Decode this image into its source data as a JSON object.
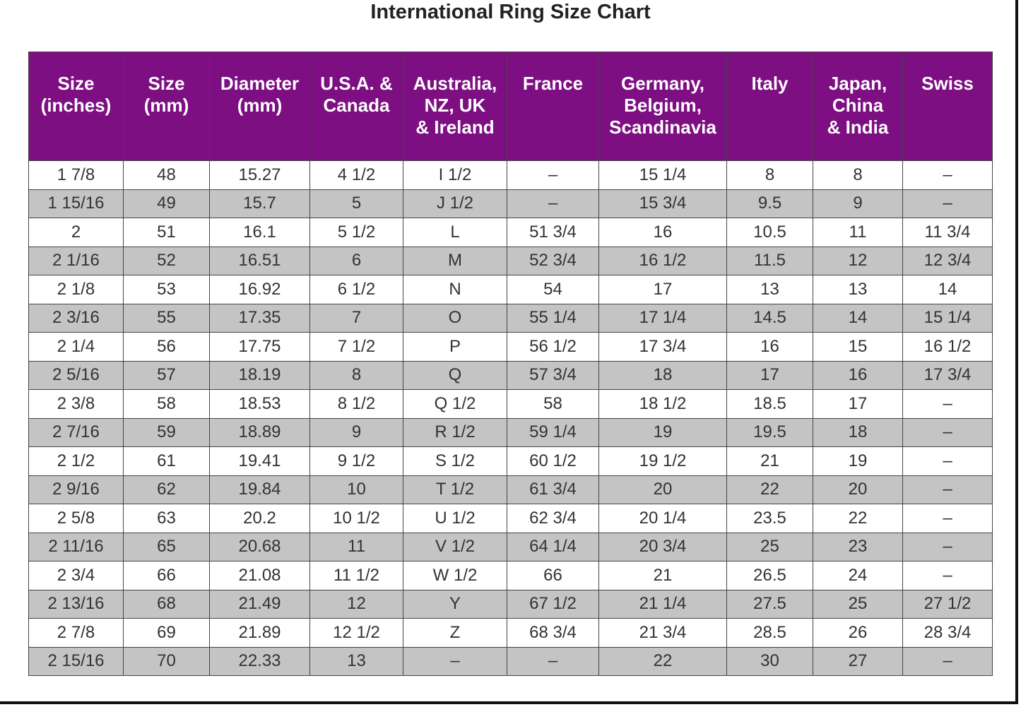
{
  "title": "International Ring Size Chart",
  "table": {
    "header": [
      [
        "Size",
        "(inches)"
      ],
      [
        "Size",
        "(mm)"
      ],
      [
        "Diameter",
        "(mm)"
      ],
      [
        "U.S.A. &",
        "Canada"
      ],
      [
        "Australia,",
        "NZ, UK",
        "& Ireland"
      ],
      [
        "France"
      ],
      [
        "Germany,",
        "Belgium,",
        "Scandinavia"
      ],
      [
        "Italy"
      ],
      [
        "Japan,",
        "China",
        "& India"
      ],
      [
        "Swiss"
      ]
    ],
    "rows": [
      [
        "1 7/8",
        "48",
        "15.27",
        "4 1/2",
        "I 1/2",
        "–",
        "15 1/4",
        "8",
        "8",
        "–"
      ],
      [
        "1 15/16",
        "49",
        "15.7",
        "5",
        "J 1/2",
        "–",
        "15 3/4",
        "9.5",
        "9",
        "–"
      ],
      [
        "2",
        "51",
        "16.1",
        "5 1/2",
        "L",
        "51 3/4",
        "16",
        "10.5",
        "11",
        "11 3/4"
      ],
      [
        "2 1/16",
        "52",
        "16.51",
        "6",
        "M",
        "52 3/4",
        "16 1/2",
        "11.5",
        "12",
        "12 3/4"
      ],
      [
        "2 1/8",
        "53",
        "16.92",
        "6 1/2",
        "N",
        "54",
        "17",
        "13",
        "13",
        "14"
      ],
      [
        "2 3/16",
        "55",
        "17.35",
        "7",
        "O",
        "55 1/4",
        "17 1/4",
        "14.5",
        "14",
        "15 1/4"
      ],
      [
        "2 1/4",
        "56",
        "17.75",
        "7 1/2",
        "P",
        "56 1/2",
        "17 3/4",
        "16",
        "15",
        "16 1/2"
      ],
      [
        "2 5/16",
        "57",
        "18.19",
        "8",
        "Q",
        "57 3/4",
        "18",
        "17",
        "16",
        "17 3/4"
      ],
      [
        "2 3/8",
        "58",
        "18.53",
        "8 1/2",
        "Q 1/2",
        "58",
        "18 1/2",
        "18.5",
        "17",
        "–"
      ],
      [
        "2 7/16",
        "59",
        "18.89",
        "9",
        "R 1/2",
        "59 1/4",
        "19",
        "19.5",
        "18",
        "–"
      ],
      [
        "2 1/2",
        "61",
        "19.41",
        "9 1/2",
        "S 1/2",
        "60 1/2",
        "19 1/2",
        "21",
        "19",
        "–"
      ],
      [
        "2 9/16",
        "62",
        "19.84",
        "10",
        "T 1/2",
        "61 3/4",
        "20",
        "22",
        "20",
        "–"
      ],
      [
        "2 5/8",
        "63",
        "20.2",
        "10 1/2",
        "U 1/2",
        "62 3/4",
        "20 1/4",
        "23.5",
        "22",
        "–"
      ],
      [
        "2 11/16",
        "65",
        "20.68",
        "11",
        "V 1/2",
        "64 1/4",
        "20 3/4",
        "25",
        "23",
        "–"
      ],
      [
        "2 3/4",
        "66",
        "21.08",
        "11 1/2",
        "W 1/2",
        "66",
        "21",
        "26.5",
        "24",
        "–"
      ],
      [
        "2 13/16",
        "68",
        "21.49",
        "12",
        "Y",
        "67 1/2",
        "21 1/4",
        "27.5",
        "25",
        "27 1/2"
      ],
      [
        "2 7/8",
        "69",
        "21.89",
        "12 1/2",
        "Z",
        "68 3/4",
        "21 3/4",
        "28.5",
        "26",
        "28 3/4"
      ],
      [
        "2 15/16",
        "70",
        "22.33",
        "13",
        "–",
        "–",
        "22",
        "30",
        "27",
        "–"
      ]
    ]
  }
}
